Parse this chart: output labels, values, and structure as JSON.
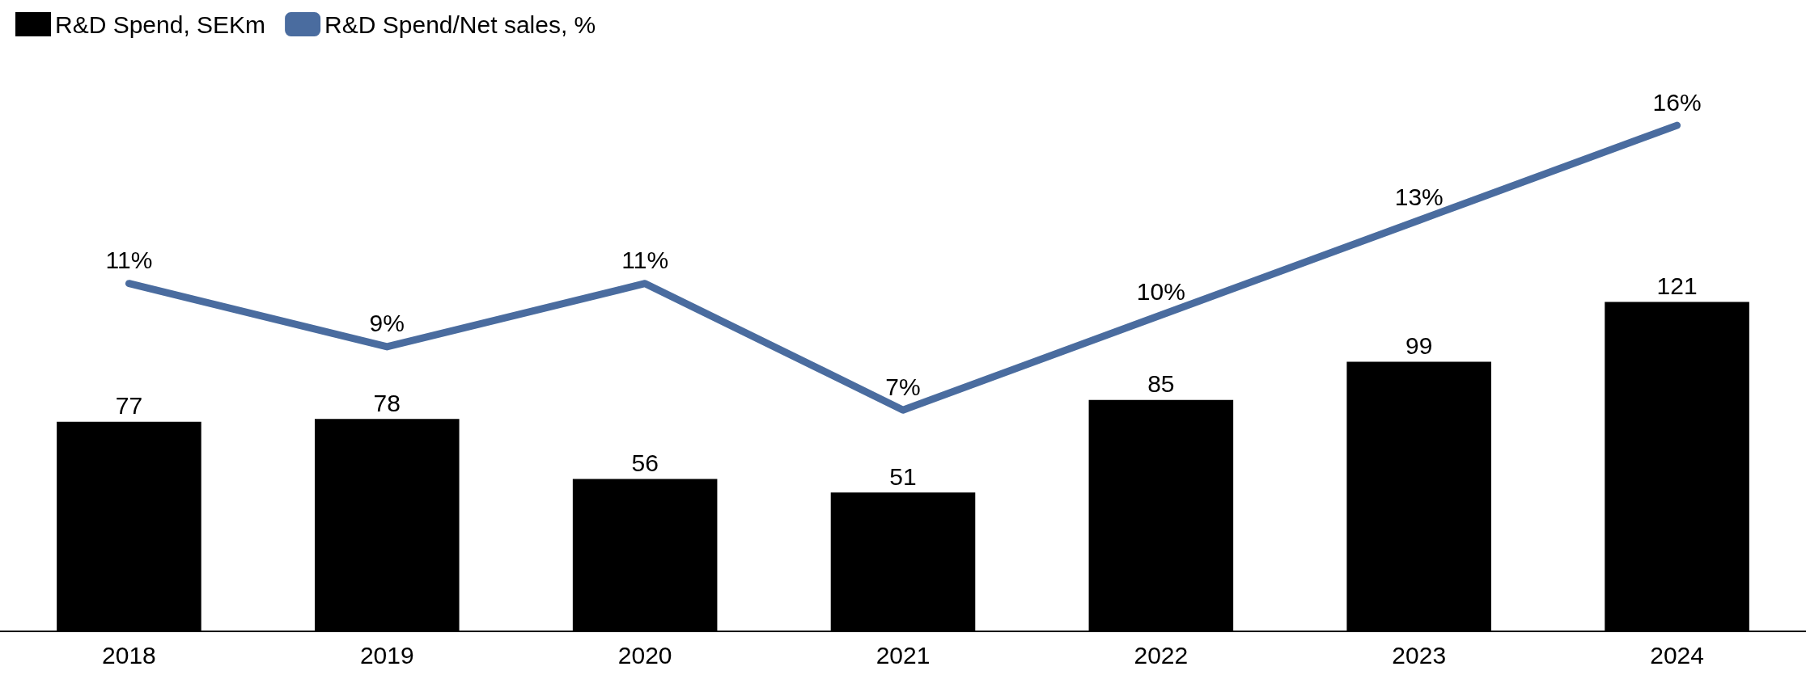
{
  "chart_data": {
    "type": "bar",
    "categories": [
      "2018",
      "2019",
      "2020",
      "2021",
      "2022",
      "2023",
      "2024"
    ],
    "series": [
      {
        "name": "R&D Spend, SEKm",
        "color": "#000000",
        "values": [
          77,
          78,
          56,
          51,
          85,
          99,
          121
        ]
      },
      {
        "name": "R&D Spend/Net sales, %",
        "type": "line",
        "axis": "y2",
        "color": "#4a6c9f",
        "values": [
          11,
          9,
          11,
          7,
          10,
          13,
          16
        ],
        "value_labels": [
          "11%",
          "9%",
          "11%",
          "7%",
          "10%",
          "13%",
          "16%"
        ]
      }
    ],
    "tick_labels": "x",
    "data_labels": true,
    "legend": "top left",
    "grid": false,
    "marker": "none",
    "line_style": "solid"
  }
}
